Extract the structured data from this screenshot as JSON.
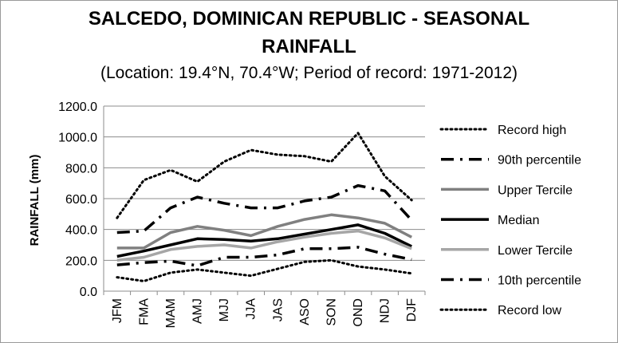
{
  "chart_data": {
    "type": "line",
    "title_line1": "SALCEDO, DOMINICAN REPUBLIC - SEASONAL",
    "title_line2": "RAINFALL",
    "subtitle": "(Location: 19.4°N, 70.4°W; Period of record: 1971-2012)",
    "ylabel": "RAINFALL (mm)",
    "xlabel": "",
    "ylim": [
      0,
      1200
    ],
    "y_ticks": [
      "0.0",
      "200.0",
      "400.0",
      "600.0",
      "800.0",
      "1000.0",
      "1200.0"
    ],
    "grid": true,
    "legend_position": "right",
    "categories": [
      "JFM",
      "FMA",
      "MAM",
      "AMJ",
      "MJJ",
      "JJA",
      "JAS",
      "ASO",
      "SON",
      "OND",
      "NDJ",
      "DJF"
    ],
    "series": [
      {
        "name": "Record high",
        "style": "dotted",
        "color": "#000000",
        "values": [
          475,
          720,
          785,
          710,
          840,
          915,
          885,
          875,
          840,
          1025,
          745,
          590
        ]
      },
      {
        "name": "90th percentile",
        "style": "long-dash-dot",
        "color": "#000000",
        "values": [
          380,
          390,
          540,
          610,
          570,
          540,
          540,
          585,
          610,
          685,
          650,
          460
        ]
      },
      {
        "name": "Upper Tercile",
        "style": "solid",
        "color": "#808080",
        "values": [
          280,
          280,
          380,
          420,
          395,
          360,
          420,
          465,
          495,
          475,
          440,
          350
        ]
      },
      {
        "name": "Median",
        "style": "solid",
        "color": "#000000",
        "values": [
          225,
          260,
          300,
          340,
          335,
          325,
          340,
          370,
          400,
          430,
          375,
          290
        ]
      },
      {
        "name": "Lower Tercile",
        "style": "solid",
        "color": "#a6a6a6",
        "values": [
          200,
          220,
          270,
          290,
          300,
          280,
          320,
          350,
          375,
          390,
          345,
          275
        ]
      },
      {
        "name": "10th percentile",
        "style": "long-dash-dot",
        "color": "#000000",
        "values": [
          170,
          185,
          195,
          165,
          220,
          220,
          235,
          275,
          275,
          285,
          240,
          205
        ]
      },
      {
        "name": "Record low",
        "style": "dotted",
        "color": "#000000",
        "values": [
          90,
          65,
          120,
          140,
          120,
          100,
          145,
          190,
          200,
          160,
          140,
          115
        ]
      }
    ]
  }
}
